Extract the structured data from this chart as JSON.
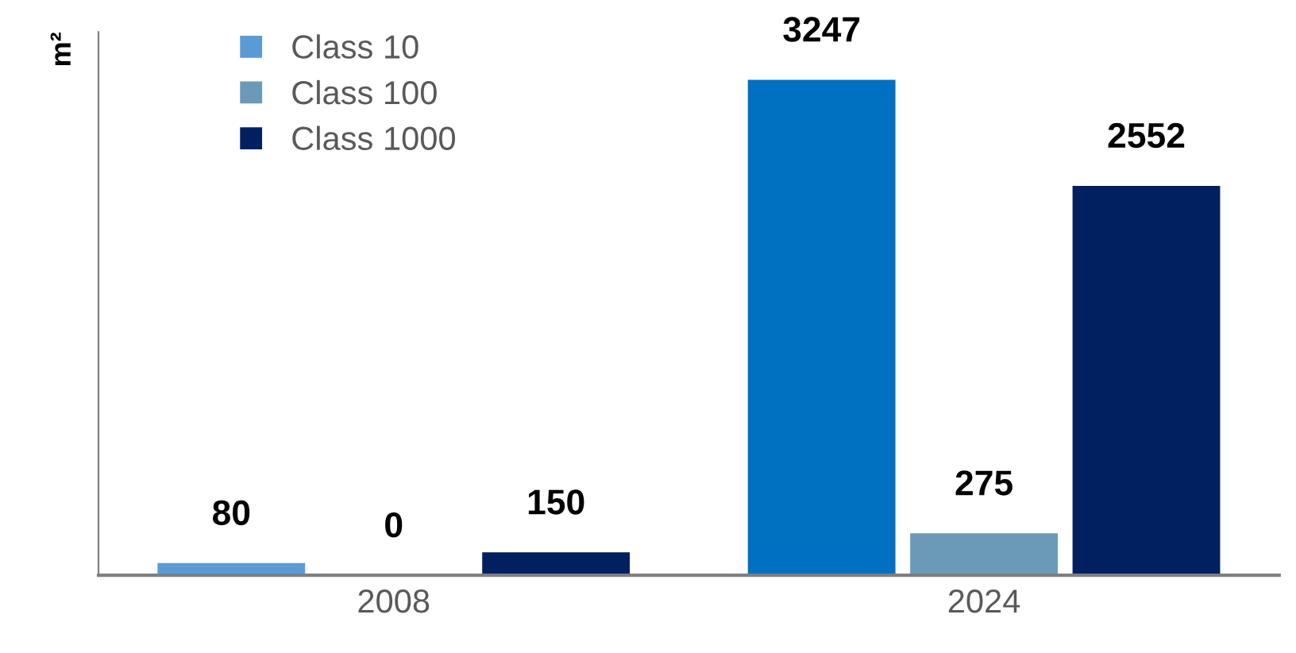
{
  "chart_data": {
    "type": "bar",
    "ylabel": "m²",
    "categories": [
      "2008",
      "2024"
    ],
    "series": [
      {
        "name": "Class 10",
        "colors": [
          "#5b9bd5",
          "#0070c0"
        ],
        "values": [
          80,
          3247
        ]
      },
      {
        "name": "Class 100",
        "color": "#6b9ab8",
        "values": [
          0,
          275
        ]
      },
      {
        "name": "Class 1000",
        "color": "#002060",
        "values": [
          150,
          2552
        ]
      }
    ],
    "ylim": [
      0,
      3560
    ],
    "data_labels": true,
    "legend": "top left",
    "grid": false
  }
}
